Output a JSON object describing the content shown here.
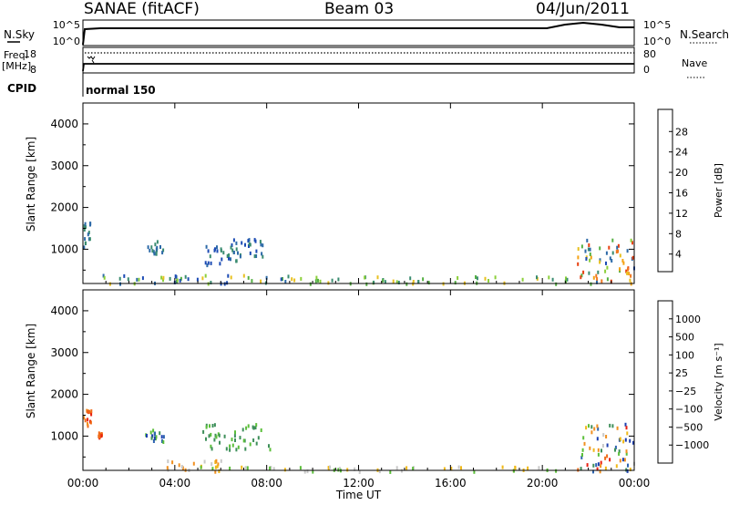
{
  "header": {
    "station": "SANAE (fitACF)",
    "beam": "Beam 03",
    "date": "04/Jun/2011"
  },
  "panels": {
    "nsky": {
      "label": "N.Sky",
      "ticks_left": [
        "10^5",
        "10^0"
      ],
      "ticks_right": [
        "10^5",
        "10^0"
      ],
      "right_label": "N.Search"
    },
    "freq": {
      "label_line1": "Freq.",
      "label_line2": "[MHz]",
      "ticks_left": [
        "18",
        "8"
      ],
      "ticks_right": [
        "80",
        "0"
      ],
      "right_label": "Nave"
    },
    "cpid": {
      "label": "CPID",
      "mode": "normal 150"
    }
  },
  "chart_data": [
    {
      "type": "heatmap",
      "name": "power",
      "ylabel": "Slant Range [km]",
      "xlabel": "",
      "x_ticks": [
        "00:00",
        "04:00",
        "08:00",
        "12:00",
        "16:00",
        "20:00",
        "00:00"
      ],
      "y_ticks": [
        "4000",
        "3000",
        "2000",
        "1000"
      ],
      "xlim_hours": [
        0,
        24
      ],
      "ylim_km": [
        180,
        4500
      ],
      "colorbar": {
        "label": "Power [dB]",
        "ticks": [
          "28",
          "24",
          "20",
          "16",
          "12",
          "8",
          "4"
        ],
        "colors": [
          "#0022ee",
          "#1c4bb4",
          "#2d6aa8",
          "#3a8c70",
          "#55b043",
          "#8ccf3a",
          "#e8c020",
          "#f5a215",
          "#f07820",
          "#e84010",
          "#e00000"
        ]
      },
      "scatter_regions": [
        {
          "t": [
            0.0,
            0.3
          ],
          "r": [
            1080,
            1700
          ],
          "level": [
            2,
            3
          ]
        },
        {
          "t": [
            2.7,
            3.5
          ],
          "r": [
            900,
            1260
          ],
          "level": [
            2,
            3
          ]
        },
        {
          "t": [
            5.3,
            6.8
          ],
          "r": [
            650,
            1150
          ],
          "level": [
            1,
            3
          ]
        },
        {
          "t": [
            6.4,
            7.9
          ],
          "r": [
            850,
            1320
          ],
          "level": [
            1,
            3
          ]
        },
        {
          "t": [
            0.6,
            9.0
          ],
          "r": [
            200,
            420
          ],
          "level": [
            1,
            6
          ]
        },
        {
          "t": [
            9.0,
            21.5
          ],
          "r": [
            200,
            380
          ],
          "level": [
            3,
            6
          ]
        },
        {
          "t": [
            21.5,
            24.0
          ],
          "r": [
            200,
            1300
          ],
          "level": [
            1,
            9
          ]
        }
      ]
    },
    {
      "type": "heatmap",
      "name": "velocity",
      "ylabel": "Slant Range [km]",
      "xlabel": "Time UT",
      "x_ticks": [
        "00:00",
        "04:00",
        "08:00",
        "12:00",
        "16:00",
        "20:00",
        "00:00"
      ],
      "y_ticks": [
        "4000",
        "3000",
        "2000",
        "1000"
      ],
      "xlim_hours": [
        0,
        24
      ],
      "ylim_km": [
        180,
        4500
      ],
      "colorbar": {
        "label": "Velocity [m s⁻¹]",
        "ticks": [
          "1000",
          "500",
          "100",
          "25",
          "−25",
          "−100",
          "−500",
          "−1000"
        ],
        "colors": [
          "#1c3fb0",
          "#2e64b0",
          "#3e8f5a",
          "#5bbf3a",
          "#c8c8c8",
          "#f0b818",
          "#f09020",
          "#f06a18",
          "#e82010"
        ]
      },
      "scatter_regions": [
        {
          "t": [
            0.0,
            0.35
          ],
          "r": [
            1280,
            1700
          ],
          "level": [
            6,
            8
          ]
        },
        {
          "t": [
            0.6,
            0.8
          ],
          "r": [
            1000,
            1120
          ],
          "level": [
            7,
            8
          ]
        },
        {
          "t": [
            2.7,
            3.5
          ],
          "r": [
            900,
            1250
          ],
          "level": [
            0,
            3
          ]
        },
        {
          "t": [
            5.2,
            8.2
          ],
          "r": [
            700,
            1320
          ],
          "level": [
            2,
            3
          ]
        },
        {
          "t": [
            3.6,
            6.0
          ],
          "r": [
            180,
            450
          ],
          "level": [
            3,
            6
          ]
        },
        {
          "t": [
            6.0,
            21.0
          ],
          "r": [
            180,
            300
          ],
          "level": [
            3,
            5
          ]
        },
        {
          "t": [
            21.5,
            24.0
          ],
          "r": [
            180,
            1350
          ],
          "level": [
            0,
            8
          ]
        }
      ]
    }
  ]
}
